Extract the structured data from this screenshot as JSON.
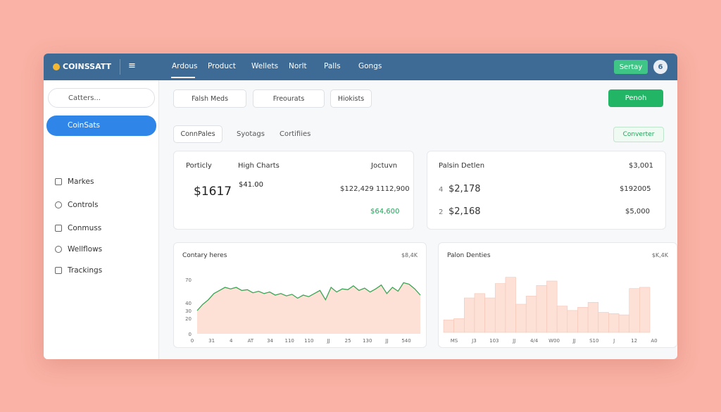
{
  "header": {
    "brand": "COINSSATT",
    "nav": [
      "Ardous",
      "Product",
      "Wellets",
      "Norlt",
      "Palls",
      "Gongs"
    ],
    "button": "Sertay",
    "avatar": "6"
  },
  "sidebar": {
    "search": "Catters...",
    "active": "CoinSats",
    "items": [
      "Markes",
      "Controls",
      "Conmuss",
      "Wellflows",
      "Trackings"
    ]
  },
  "toolbar": {
    "filters": [
      "Falsh Meds",
      "Freourats",
      "Hiokists"
    ],
    "button": "Penoh"
  },
  "tabs": {
    "items": [
      "ConnPales",
      "Syotags",
      "Cortifiies"
    ],
    "button": "Converter"
  },
  "card1": {
    "title": "Porticly",
    "dropdown": "High Charts",
    "right": "Joctuvn",
    "big": "$1617",
    "sub": "$41.00",
    "range": "$122,429 1112,900",
    "green": "$64,600"
  },
  "card2": {
    "title": "Palsin Detlen",
    "right": "$3,001",
    "rows": [
      {
        "n": "4",
        "value": "$2,178",
        "right": "$192005"
      },
      {
        "n": "2",
        "value": "$2,168",
        "right": "$5,000"
      }
    ]
  },
  "chart_data": [
    {
      "type": "area",
      "title": "Contary heres",
      "note": "$8,4K",
      "color": "#3aa655",
      "fill": "#fde0d6",
      "x_labels": [
        "0",
        "31",
        "4",
        "AT",
        "34",
        "110",
        "110",
        "JJ",
        "25",
        "130",
        "JJ",
        "540"
      ],
      "values": [
        30,
        38,
        44,
        52,
        56,
        60,
        58,
        60,
        56,
        57,
        53,
        55,
        52,
        54,
        50,
        52,
        49,
        51,
        46,
        50,
        48,
        52,
        56,
        44,
        60,
        54,
        58,
        57,
        62,
        56,
        59,
        54,
        58,
        63,
        52,
        60,
        55,
        66,
        64,
        58,
        50
      ],
      "ylim": [
        0,
        80
      ],
      "yticks": [
        0,
        20,
        30,
        40,
        70
      ]
    },
    {
      "type": "bar",
      "title": "Palon Denties",
      "note": "$K,4K",
      "color": "#fde0d6",
      "stroke": "#f6c6b6",
      "x_labels": [
        "MS",
        "J3",
        "103",
        "JJ",
        "4/4",
        "W00",
        "JJ",
        "S10",
        "J",
        "12",
        "A0"
      ],
      "values": [
        20,
        22,
        55,
        62,
        55,
        78,
        88,
        45,
        58,
        75,
        82,
        42,
        35,
        40,
        48,
        32,
        30,
        28,
        70,
        72
      ],
      "ylim": [
        0,
        100
      ]
    }
  ]
}
